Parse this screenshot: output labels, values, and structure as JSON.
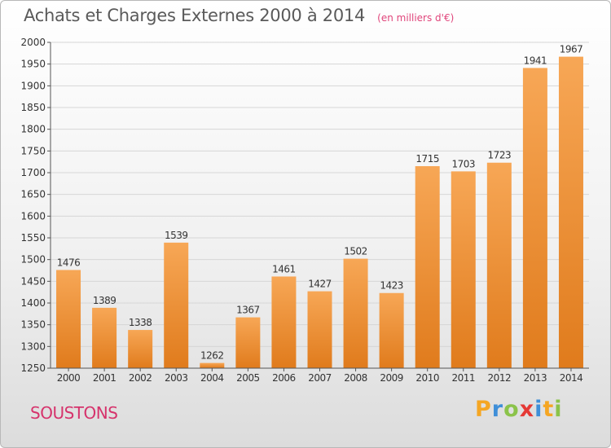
{
  "header": {
    "title": "Achats et Charges Externes 2000 à 2014",
    "unit": "(en milliers d'€)"
  },
  "footer": {
    "place": "SOUSTONS",
    "brand": [
      "P",
      "r",
      "o",
      "x",
      "i",
      "t",
      "i"
    ],
    "brand_colors": [
      "#f5a623",
      "#3f8fd8",
      "#8bc34a",
      "#e53935",
      "#3f8fd8",
      "#f5a623",
      "#8bc34a"
    ]
  },
  "colors": {
    "bar_top": "#f7a756",
    "bar_bottom": "#e07b1c",
    "grid": "#d6d6d6",
    "axis": "#555555",
    "text": "#333333"
  },
  "chart_data": {
    "type": "bar",
    "title": "Achats et Charges Externes 2000 à 2014",
    "subtitle": "(en milliers d'€)",
    "categories": [
      "2000",
      "2001",
      "2002",
      "2003",
      "2004",
      "2005",
      "2006",
      "2007",
      "2008",
      "2009",
      "2010",
      "2011",
      "2012",
      "2013",
      "2014"
    ],
    "values": [
      1476,
      1389,
      1338,
      1539,
      1262,
      1367,
      1461,
      1427,
      1502,
      1423,
      1715,
      1703,
      1723,
      1941,
      1967
    ],
    "value_labels": [
      "1476",
      "1389",
      "1338",
      "1539",
      "1262",
      "1367",
      "1461",
      "1427",
      "1502",
      "1423",
      "1715",
      "1703",
      "1723",
      "1941",
      "1967"
    ],
    "yticks": [
      "1250",
      "1300",
      "1350",
      "1400",
      "1450",
      "1500",
      "1550",
      "1600",
      "1650",
      "1700",
      "1750",
      "1800",
      "1850",
      "1900",
      "1950",
      "2000"
    ],
    "ylim": [
      1250,
      2000
    ],
    "grid": true,
    "legend": "none"
  }
}
